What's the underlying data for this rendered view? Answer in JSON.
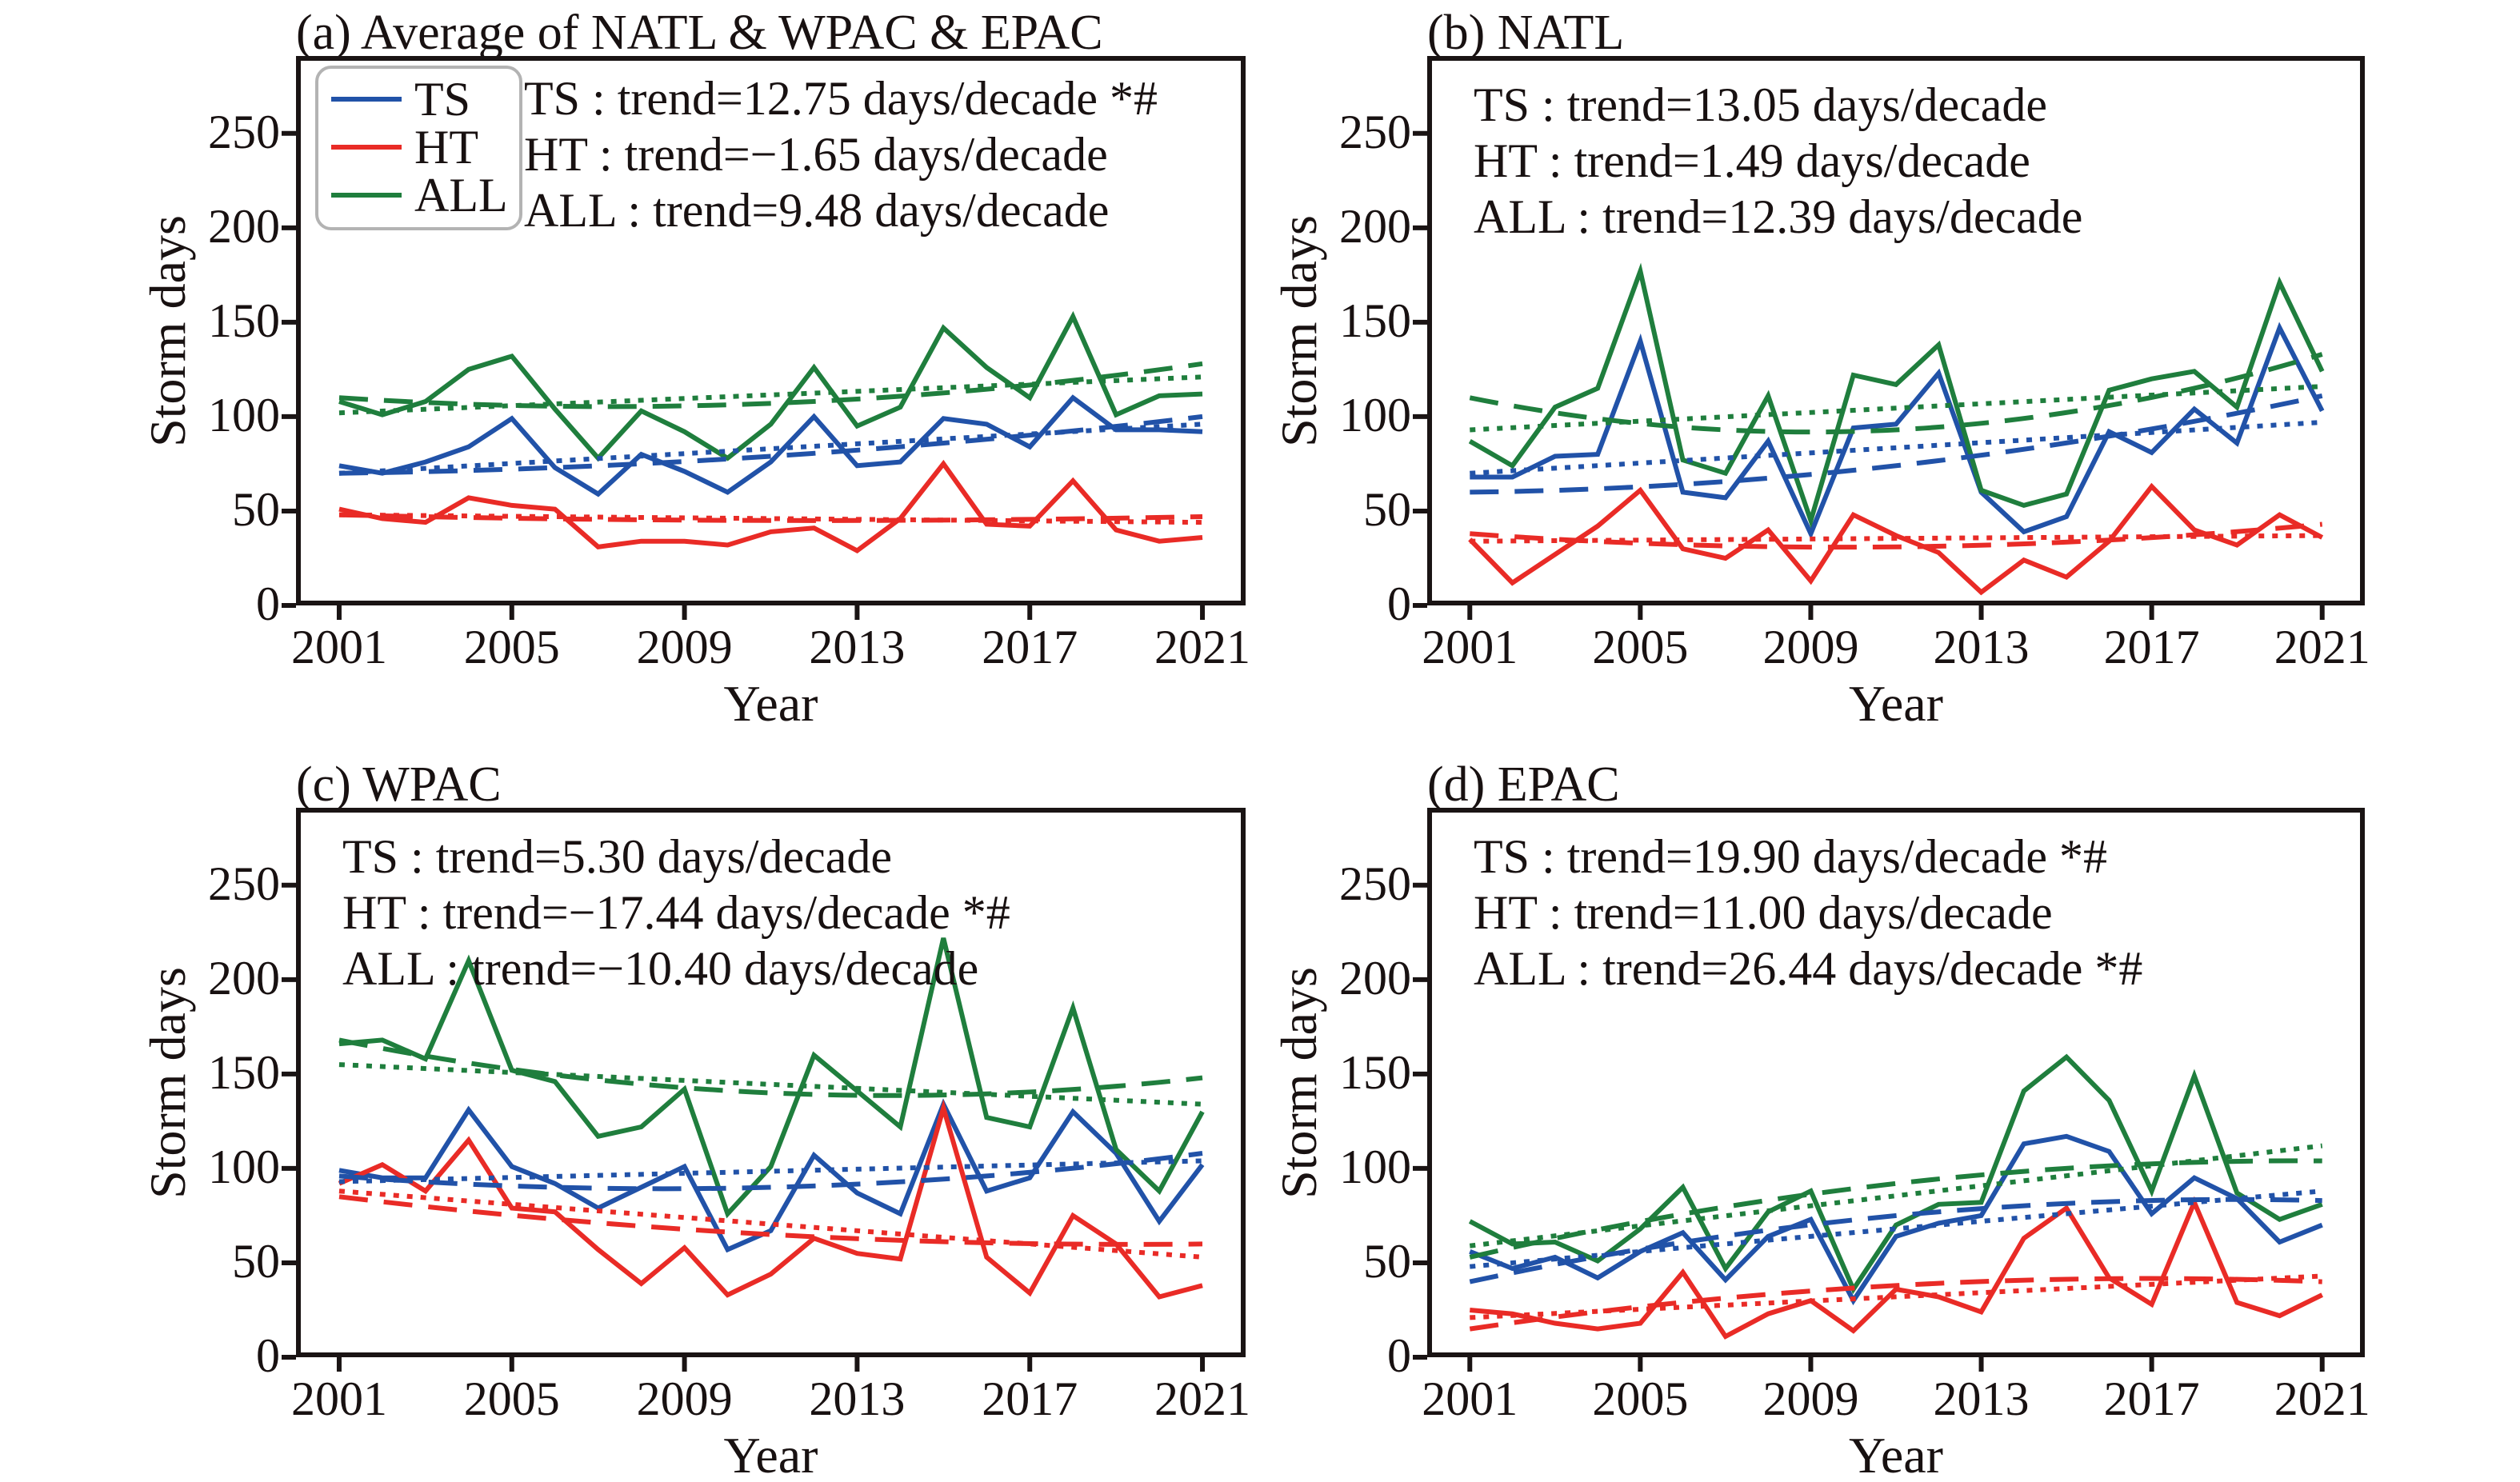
{
  "figure": {
    "background": "#ffffff",
    "ink_color": "#1a1414",
    "xlabel": "Year",
    "ylabel": "Storm days"
  },
  "colors": {
    "TS": "#2152a8",
    "HT": "#e92b26",
    "ALL": "#1f7e3d"
  },
  "legend": {
    "items": [
      {
        "label": "TS",
        "color": "TS"
      },
      {
        "label": "HT",
        "color": "HT"
      },
      {
        "label": "ALL",
        "color": "ALL"
      }
    ]
  },
  "chart_data": [
    {
      "id": "a",
      "type": "line",
      "title": "(a) Average of NATL & WPAC & EPAC",
      "xlabel": "Year",
      "ylabel": "Storm days",
      "xlim": [
        2000,
        2022
      ],
      "ylim": [
        0,
        291
      ],
      "xticks": [
        2001,
        2005,
        2009,
        2013,
        2017,
        2021
      ],
      "yticks": [
        0,
        50,
        100,
        150,
        200,
        250
      ],
      "x": [
        2001,
        2002,
        2003,
        2004,
        2005,
        2006,
        2007,
        2008,
        2009,
        2010,
        2011,
        2012,
        2013,
        2014,
        2015,
        2016,
        2017,
        2018,
        2019,
        2020,
        2021
      ],
      "annotations": [
        "TS : trend=12.75 days/decade *#",
        "HT : trend=−1.65 days/decade",
        "ALL : trend=9.48 days/decade"
      ],
      "series": [
        {
          "name": "TS",
          "style": "solid",
          "color": "TS",
          "values": [
            74,
            70,
            76,
            84,
            99,
            73,
            59,
            80,
            71,
            60,
            76,
            100,
            74,
            76,
            99,
            96,
            84,
            110,
            93,
            93,
            92
          ]
        },
        {
          "name": "HT",
          "style": "solid",
          "color": "HT",
          "values": [
            51,
            46,
            44,
            57,
            53,
            51,
            31,
            34,
            34,
            32,
            39,
            41,
            29,
            46,
            75,
            43,
            42,
            66,
            40,
            34,
            36
          ]
        },
        {
          "name": "ALL",
          "style": "solid",
          "color": "ALL",
          "values": [
            108,
            101,
            108,
            125,
            132,
            104,
            78,
            103,
            92,
            78,
            96,
            126,
            95,
            105,
            147,
            126,
            110,
            153,
            101,
            111,
            112
          ]
        }
      ],
      "trends": [
        {
          "series": "TS",
          "style": "dotted",
          "points": [
            [
              2001,
              70
            ],
            [
              2021,
              96
            ]
          ]
        },
        {
          "series": "TS",
          "style": "dashed",
          "points": [
            [
              2001,
              70
            ],
            [
              2011,
              79
            ],
            [
              2021,
              100
            ]
          ]
        },
        {
          "series": "HT",
          "style": "dotted",
          "points": [
            [
              2001,
              48
            ],
            [
              2021,
              44
            ]
          ]
        },
        {
          "series": "HT",
          "style": "dashed",
          "points": [
            [
              2001,
              48
            ],
            [
              2011,
              45
            ],
            [
              2021,
              47
            ]
          ]
        },
        {
          "series": "ALL",
          "style": "dotted",
          "points": [
            [
              2001,
              102
            ],
            [
              2021,
              121
            ]
          ]
        },
        {
          "series": "ALL",
          "style": "dashed",
          "points": [
            [
              2001,
              110
            ],
            [
              2011,
              107
            ],
            [
              2021,
              128
            ]
          ]
        }
      ]
    },
    {
      "id": "b",
      "type": "line",
      "title": "(b) NATL",
      "xlabel": "Year",
      "ylabel": "Storm days",
      "xlim": [
        2000,
        2022
      ],
      "ylim": [
        0,
        291
      ],
      "xticks": [
        2001,
        2005,
        2009,
        2013,
        2017,
        2021
      ],
      "yticks": [
        0,
        50,
        100,
        150,
        200,
        250
      ],
      "x": [
        2001,
        2002,
        2003,
        2004,
        2005,
        2006,
        2007,
        2008,
        2009,
        2010,
        2011,
        2012,
        2013,
        2014,
        2015,
        2016,
        2017,
        2018,
        2019,
        2020,
        2021
      ],
      "annotations": [
        "TS : trend=13.05 days/decade",
        "HT : trend=1.49 days/decade",
        "ALL : trend=12.39 days/decade"
      ],
      "series": [
        {
          "name": "TS",
          "style": "solid",
          "color": "TS",
          "values": [
            68,
            68,
            79,
            80,
            140,
            60,
            57,
            87,
            38,
            94,
            96,
            123,
            60,
            39,
            47,
            92,
            81,
            104,
            86,
            147,
            103
          ]
        },
        {
          "name": "HT",
          "style": "solid",
          "color": "HT",
          "values": [
            35,
            12,
            27,
            42,
            61,
            30,
            25,
            40,
            13,
            48,
            37,
            28,
            7,
            24,
            15,
            34,
            63,
            40,
            32,
            48,
            36
          ]
        },
        {
          "name": "ALL",
          "style": "solid",
          "color": "ALL",
          "values": [
            87,
            74,
            105,
            115,
            177,
            77,
            70,
            111,
            45,
            122,
            117,
            138,
            61,
            53,
            59,
            114,
            120,
            124,
            105,
            171,
            124
          ]
        }
      ],
      "trends": [
        {
          "series": "TS",
          "style": "dotted",
          "points": [
            [
              2001,
              70
            ],
            [
              2021,
              97
            ]
          ]
        },
        {
          "series": "TS",
          "style": "dashed",
          "points": [
            [
              2001,
              60
            ],
            [
              2011,
              74
            ],
            [
              2021,
              111
            ]
          ]
        },
        {
          "series": "HT",
          "style": "dotted",
          "points": [
            [
              2001,
              34
            ],
            [
              2021,
              37
            ]
          ]
        },
        {
          "series": "HT",
          "style": "dashed",
          "points": [
            [
              2001,
              38
            ],
            [
              2011,
              31
            ],
            [
              2021,
              43
            ]
          ]
        },
        {
          "series": "ALL",
          "style": "dotted",
          "points": [
            [
              2001,
              93
            ],
            [
              2021,
              116
            ]
          ]
        },
        {
          "series": "ALL",
          "style": "dashed",
          "points": [
            [
              2001,
              110
            ],
            [
              2011,
              93
            ],
            [
              2021,
              133
            ]
          ]
        }
      ]
    },
    {
      "id": "c",
      "type": "line",
      "title": "(c) WPAC",
      "xlabel": "Year",
      "ylabel": "Storm days",
      "xlim": [
        2000,
        2022
      ],
      "ylim": [
        0,
        291
      ],
      "xticks": [
        2001,
        2005,
        2009,
        2013,
        2017,
        2021
      ],
      "yticks": [
        0,
        50,
        100,
        150,
        200,
        250
      ],
      "x": [
        2001,
        2002,
        2003,
        2004,
        2005,
        2006,
        2007,
        2008,
        2009,
        2010,
        2011,
        2012,
        2013,
        2014,
        2015,
        2016,
        2017,
        2018,
        2019,
        2020,
        2021
      ],
      "annotations": [
        "TS : trend=5.30 days/decade",
        "HT : trend=−17.44 days/decade *#",
        "ALL : trend=−10.40 days/decade"
      ],
      "series": [
        {
          "name": "TS",
          "style": "solid",
          "color": "TS",
          "values": [
            99,
            95,
            95,
            131,
            101,
            92,
            79,
            90,
            101,
            57,
            67,
            107,
            87,
            76,
            134,
            88,
            95,
            130,
            108,
            72,
            102
          ]
        },
        {
          "name": "HT",
          "style": "solid",
          "color": "HT",
          "values": [
            92,
            102,
            88,
            115,
            79,
            77,
            57,
            39,
            58,
            33,
            44,
            63,
            55,
            52,
            132,
            53,
            34,
            75,
            60,
            32,
            38
          ]
        },
        {
          "name": "ALL",
          "style": "solid",
          "color": "ALL",
          "values": [
            166,
            168,
            158,
            210,
            152,
            146,
            117,
            122,
            142,
            76,
            101,
            160,
            141,
            122,
            222,
            127,
            122,
            185,
            110,
            88,
            130
          ]
        }
      ],
      "trends": [
        {
          "series": "TS",
          "style": "dotted",
          "points": [
            [
              2001,
              93
            ],
            [
              2021,
              104
            ]
          ]
        },
        {
          "series": "TS",
          "style": "dashed",
          "points": [
            [
              2001,
              96
            ],
            [
              2011,
              90
            ],
            [
              2021,
              108
            ]
          ]
        },
        {
          "series": "HT",
          "style": "dotted",
          "points": [
            [
              2001,
              88
            ],
            [
              2021,
              53
            ]
          ]
        },
        {
          "series": "HT",
          "style": "dashed",
          "points": [
            [
              2001,
              85
            ],
            [
              2011,
              65
            ],
            [
              2021,
              60
            ]
          ]
        },
        {
          "series": "ALL",
          "style": "dotted",
          "points": [
            [
              2001,
              155
            ],
            [
              2021,
              134
            ]
          ]
        },
        {
          "series": "ALL",
          "style": "dashed",
          "points": [
            [
              2001,
              168
            ],
            [
              2011,
              140
            ],
            [
              2021,
              148
            ]
          ]
        }
      ]
    },
    {
      "id": "d",
      "type": "line",
      "title": "(d) EPAC",
      "xlabel": "Year",
      "ylabel": "Storm days",
      "xlim": [
        2000,
        2022
      ],
      "ylim": [
        0,
        291
      ],
      "xticks": [
        2001,
        2005,
        2009,
        2013,
        2017,
        2021
      ],
      "yticks": [
        0,
        50,
        100,
        150,
        200,
        250
      ],
      "x": [
        2001,
        2002,
        2003,
        2004,
        2005,
        2006,
        2007,
        2008,
        2009,
        2010,
        2011,
        2012,
        2013,
        2014,
        2015,
        2016,
        2017,
        2018,
        2019,
        2020,
        2021
      ],
      "annotations": [
        "TS : trend=19.90 days/decade *#",
        "HT : trend=11.00 days/decade",
        "ALL : trend=26.44 days/decade *#"
      ],
      "series": [
        {
          "name": "TS",
          "style": "solid",
          "color": "TS",
          "values": [
            56,
            47,
            53,
            42,
            56,
            66,
            41,
            64,
            73,
            30,
            64,
            71,
            75,
            113,
            117,
            109,
            76,
            95,
            84,
            61,
            70
          ]
        },
        {
          "name": "HT",
          "style": "solid",
          "color": "HT",
          "values": [
            25,
            23,
            18,
            15,
            18,
            45,
            11,
            23,
            30,
            14,
            36,
            32,
            24,
            63,
            79,
            42,
            28,
            82,
            29,
            22,
            33
          ]
        },
        {
          "name": "ALL",
          "style": "solid",
          "color": "ALL",
          "values": [
            72,
            60,
            61,
            51,
            68,
            90,
            47,
            77,
            88,
            36,
            70,
            81,
            82,
            141,
            159,
            136,
            88,
            149,
            87,
            73,
            81
          ]
        }
      ],
      "trends": [
        {
          "series": "TS",
          "style": "dotted",
          "points": [
            [
              2001,
              48
            ],
            [
              2021,
              88
            ]
          ]
        },
        {
          "series": "TS",
          "style": "dashed",
          "points": [
            [
              2001,
              40
            ],
            [
              2011,
              75
            ],
            [
              2021,
              83
            ]
          ]
        },
        {
          "series": "HT",
          "style": "dotted",
          "points": [
            [
              2001,
              21
            ],
            [
              2021,
              43
            ]
          ]
        },
        {
          "series": "HT",
          "style": "dashed",
          "points": [
            [
              2001,
              15
            ],
            [
              2011,
              38
            ],
            [
              2021,
              40
            ]
          ]
        },
        {
          "series": "ALL",
          "style": "dotted",
          "points": [
            [
              2001,
              59
            ],
            [
              2021,
              112
            ]
          ]
        },
        {
          "series": "ALL",
          "style": "dashed",
          "points": [
            [
              2001,
              53
            ],
            [
              2011,
              92
            ],
            [
              2021,
              104
            ]
          ]
        }
      ]
    }
  ]
}
